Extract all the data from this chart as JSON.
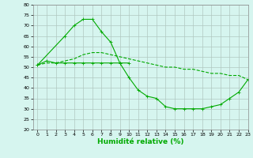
{
  "xlabel": "Humidité relative (%)",
  "bg_color": "#d6f5ef",
  "grid_color": "#b0c8c0",
  "line_color": "#00aa00",
  "xlim": [
    -0.5,
    23
  ],
  "ylim": [
    20,
    80
  ],
  "yticks": [
    20,
    25,
    30,
    35,
    40,
    45,
    50,
    55,
    60,
    65,
    70,
    75,
    80
  ],
  "xticks": [
    0,
    1,
    2,
    3,
    4,
    5,
    6,
    7,
    8,
    9,
    10,
    11,
    12,
    13,
    14,
    15,
    16,
    17,
    18,
    19,
    20,
    21,
    22,
    23
  ],
  "series": [
    {
      "x": [
        0,
        3,
        4,
        5,
        6,
        7,
        8,
        9,
        10
      ],
      "y": [
        51,
        65,
        70,
        73,
        73,
        67,
        62,
        52,
        52
      ],
      "marker": "+"
    },
    {
      "x": [
        0,
        1,
        2,
        3,
        4,
        5,
        6,
        7,
        8,
        9,
        10,
        11,
        12,
        13,
        14,
        15,
        16,
        17,
        18,
        19,
        20,
        21,
        22,
        23
      ],
      "y": [
        51,
        52,
        52,
        53,
        54,
        56,
        57,
        57,
        56,
        55,
        54,
        53,
        52,
        51,
        50,
        50,
        49,
        49,
        48,
        47,
        47,
        46,
        46,
        44
      ],
      "marker": null,
      "linestyle": "--"
    },
    {
      "x": [
        0,
        1,
        2,
        3,
        4,
        5,
        6,
        7,
        8,
        9,
        10,
        11,
        12,
        13,
        14,
        15,
        16,
        17,
        18,
        19,
        20,
        21,
        22,
        23
      ],
      "y": [
        51,
        53,
        52,
        52,
        52,
        52,
        52,
        52,
        52,
        52,
        45,
        39,
        36,
        35,
        31,
        30,
        30,
        30,
        30,
        31,
        32,
        35,
        38,
        44
      ],
      "marker": "+"
    }
  ]
}
